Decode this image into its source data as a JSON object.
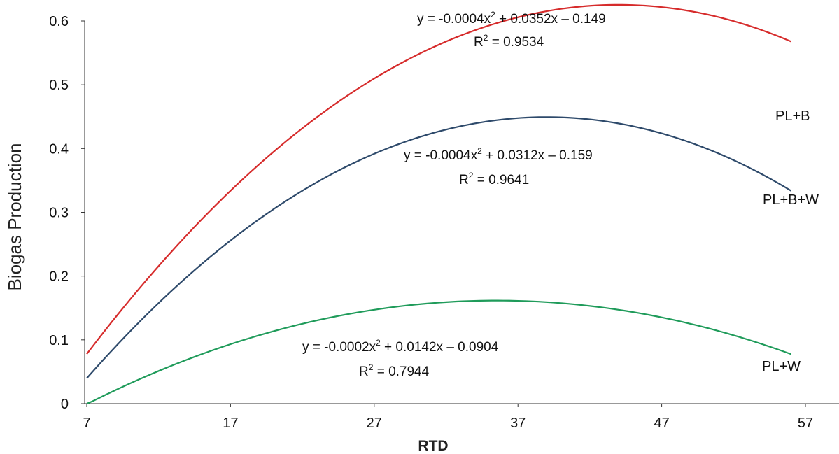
{
  "chart_data": {
    "type": "line",
    "xlabel": "RTD",
    "ylabel": "Biogas Production",
    "xlim": [
      7,
      57
    ],
    "ylim": [
      0,
      0.6
    ],
    "x_ticks": [
      7,
      17,
      27,
      37,
      47,
      57
    ],
    "y_ticks": [
      "0",
      "0.1",
      "0.2",
      "0.3",
      "0.4",
      "0.5",
      "0.6"
    ],
    "grid": false,
    "series": [
      {
        "name": "PL+B",
        "color": "#d62b2b",
        "x_range": [
          7,
          56
        ],
        "coefficients": {
          "a": -0.0004,
          "b": 0.0352,
          "c": -0.149
        },
        "equation": {
          "prefix": "y = -0.0004x",
          "exp": "2",
          "suffix": " + 0.0352x – 0.149"
        },
        "r2": {
          "label": "R",
          "exp": "2",
          "value": " = 0.9534"
        }
      },
      {
        "name": "PL+B+W",
        "color": "#2e4a6b",
        "x_range": [
          7,
          56
        ],
        "coefficients": {
          "a": -0.0004,
          "b": 0.0312,
          "c": -0.159
        },
        "equation": {
          "prefix": "y = -0.0004x",
          "exp": "2",
          "suffix": " + 0.0312x – 0.159"
        },
        "r2": {
          "label": "R",
          "exp": "2",
          "value": " = 0.9641"
        }
      },
      {
        "name": "PL+W",
        "color": "#1f9b5a",
        "x_range": [
          7,
          56
        ],
        "coefficients": {
          "a": -0.0002,
          "b": 0.0142,
          "c": -0.0904
        },
        "equation": {
          "prefix": "y = -0.0002x",
          "exp": "2",
          "suffix": " + 0.0142x – 0.0904"
        },
        "r2": {
          "label": "R",
          "exp": "2",
          "value": " = 0.7944"
        }
      }
    ]
  }
}
